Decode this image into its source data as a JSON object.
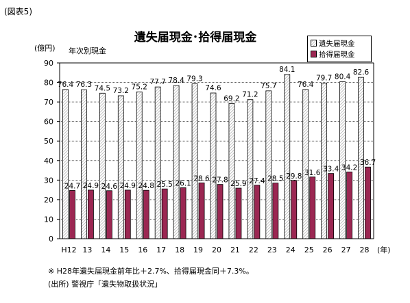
{
  "figure_label": "(図表5)",
  "colors": {
    "lost_fill": "#ffffff",
    "found_fill": "#9b2752",
    "axis": "#000000",
    "grid": "#000000"
  },
  "chart_data": {
    "type": "bar",
    "title": "遺失届現金･拾得届現金",
    "subtitle": "年次別現金",
    "unit_label": "(億円)",
    "xlabel": "(年)",
    "ylabel": "",
    "ylim": [
      0,
      90
    ],
    "yticks": [
      0,
      10,
      20,
      30,
      40,
      50,
      60,
      70,
      80,
      90
    ],
    "grid": true,
    "legend": "top-right",
    "categories": [
      "H12",
      "13",
      "14",
      "15",
      "16",
      "17",
      "18",
      "19",
      "20",
      "21",
      "22",
      "23",
      "24",
      "25",
      "26",
      "27",
      "28"
    ],
    "series": [
      {
        "name": "遺失届現金",
        "pattern": "hatched",
        "values": [
          76.4,
          76.3,
          74.5,
          73.2,
          75.2,
          77.7,
          78.4,
          79.3,
          74.6,
          69.2,
          71.2,
          75.7,
          84.1,
          76.4,
          79.7,
          80.4,
          82.6
        ]
      },
      {
        "name": "拾得届現金",
        "pattern": "solid",
        "values": [
          24.7,
          24.9,
          24.6,
          24.9,
          24.8,
          25.5,
          26.1,
          28.6,
          27.8,
          25.9,
          27.4,
          28.5,
          29.8,
          31.6,
          33.4,
          34.2,
          36.7
        ]
      }
    ]
  },
  "notes": {
    "note1": "※ H28年遺失届現金前年比＋2.7%、拾得届現金同＋7.3%。",
    "note2": "(出所) 警視庁「遺失物取扱状況」"
  }
}
